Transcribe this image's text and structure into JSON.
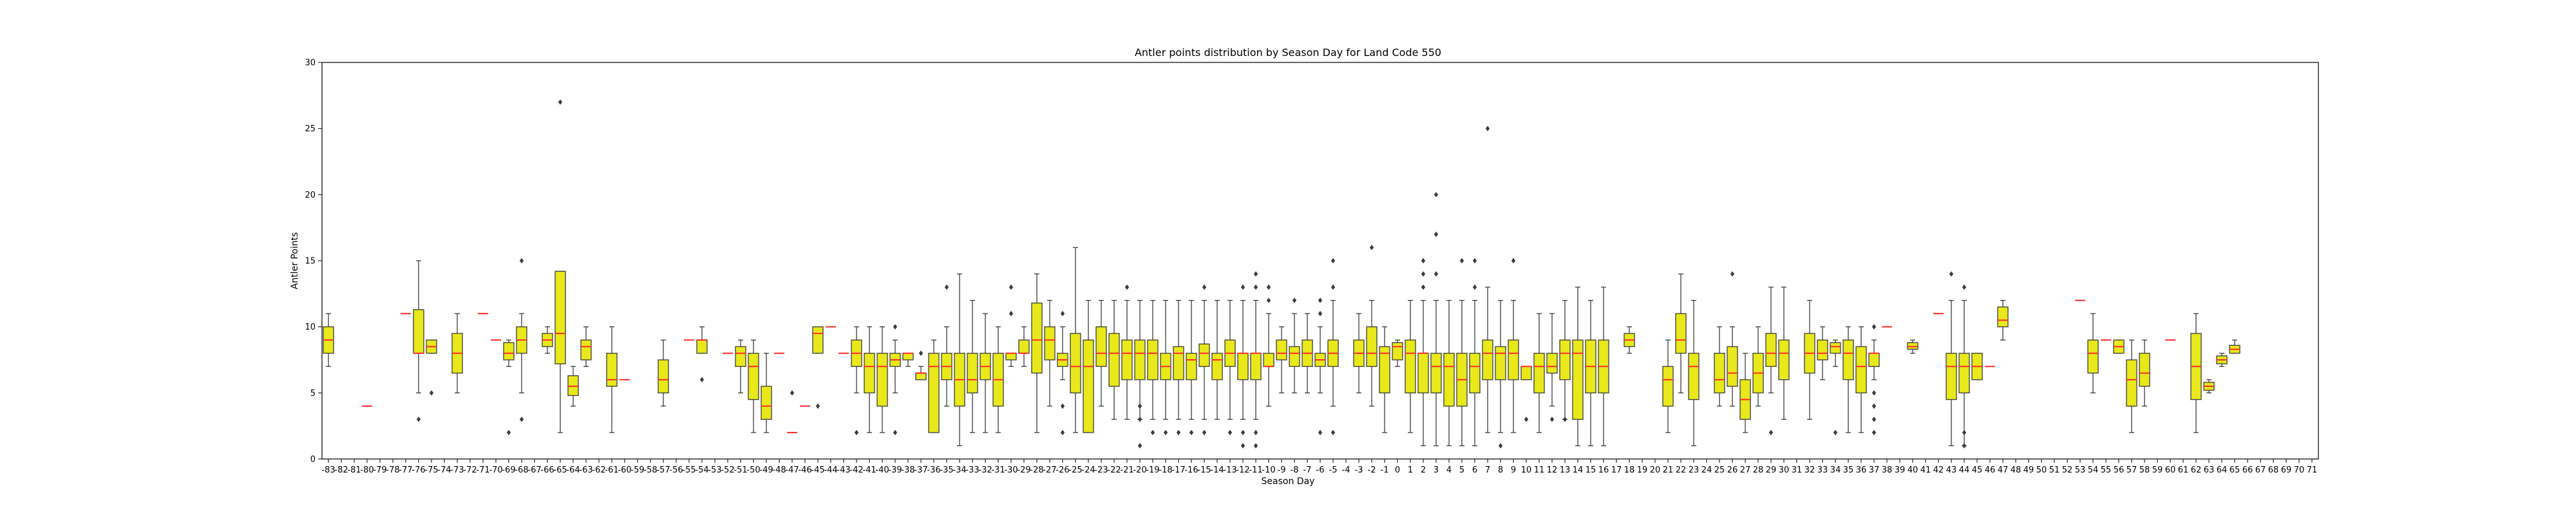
{
  "chart_data": {
    "type": "box",
    "title": "Antler points distribution by Season Day for Land Code 550",
    "xlabel": "Season Day",
    "ylabel": "Antler Points",
    "ylim": [
      0,
      30
    ],
    "yticks": [
      0,
      5,
      10,
      15,
      20,
      25,
      30
    ],
    "x_start": -83,
    "x_end": 71,
    "colors": {
      "box": "#e8e81a",
      "median": "#ff2a2a",
      "line": "#3c3c3c",
      "outlier": "#3c3c3c"
    },
    "boxes": [
      {
        "x": -83,
        "q1": 8,
        "med": 9,
        "q3": 10,
        "lo": 7,
        "hi": 11,
        "out": []
      },
      {
        "x": -80,
        "q1": 4,
        "med": 4,
        "q3": 4,
        "lo": 4,
        "hi": 4,
        "out": []
      },
      {
        "x": -77,
        "q1": 11,
        "med": 11,
        "q3": 11,
        "lo": 11,
        "hi": 11,
        "out": []
      },
      {
        "x": -76,
        "q1": 8,
        "med": 8,
        "q3": 11.3,
        "lo": 5,
        "hi": 15,
        "out": [
          3
        ]
      },
      {
        "x": -75,
        "q1": 8,
        "med": 8.5,
        "q3": 9,
        "lo": 8,
        "hi": 9,
        "out": [
          5
        ]
      },
      {
        "x": -73,
        "q1": 6.5,
        "med": 8,
        "q3": 9.5,
        "lo": 5,
        "hi": 11,
        "out": []
      },
      {
        "x": -71,
        "q1": 11,
        "med": 11,
        "q3": 11,
        "lo": 11,
        "hi": 11,
        "out": []
      },
      {
        "x": -70,
        "q1": 9,
        "med": 9,
        "q3": 9,
        "lo": 9,
        "hi": 9,
        "out": []
      },
      {
        "x": -69,
        "q1": 7.5,
        "med": 8,
        "q3": 8.8,
        "lo": 7,
        "hi": 9,
        "out": [
          2
        ]
      },
      {
        "x": -68,
        "q1": 8,
        "med": 9,
        "q3": 10,
        "lo": 5,
        "hi": 11,
        "out": [
          15,
          3
        ]
      },
      {
        "x": -66,
        "q1": 8.5,
        "med": 9,
        "q3": 9.5,
        "lo": 8,
        "hi": 10,
        "out": []
      },
      {
        "x": -65,
        "q1": 7.2,
        "med": 9.5,
        "q3": 14.2,
        "lo": 2,
        "hi": 14.2,
        "out": [
          27
        ]
      },
      {
        "x": -64,
        "q1": 4.8,
        "med": 5.5,
        "q3": 6.3,
        "lo": 4,
        "hi": 7,
        "out": []
      },
      {
        "x": -63,
        "q1": 7.5,
        "med": 8.5,
        "q3": 9,
        "lo": 7,
        "hi": 10,
        "out": []
      },
      {
        "x": -61,
        "q1": 5.5,
        "med": 6,
        "q3": 8,
        "lo": 2,
        "hi": 10,
        "out": []
      },
      {
        "x": -60,
        "q1": 6,
        "med": 6,
        "q3": 6,
        "lo": 6,
        "hi": 6,
        "out": []
      },
      {
        "x": -57,
        "q1": 5,
        "med": 6,
        "q3": 7.5,
        "lo": 4,
        "hi": 9,
        "out": []
      },
      {
        "x": -55,
        "q1": 9,
        "med": 9,
        "q3": 9,
        "lo": 9,
        "hi": 9,
        "out": []
      },
      {
        "x": -54,
        "q1": 8,
        "med": 9,
        "q3": 9,
        "lo": 8,
        "hi": 10,
        "out": [
          6
        ]
      },
      {
        "x": -52,
        "q1": 8,
        "med": 8,
        "q3": 8,
        "lo": 8,
        "hi": 8,
        "out": []
      },
      {
        "x": -51,
        "q1": 7,
        "med": 8,
        "q3": 8.5,
        "lo": 5,
        "hi": 9,
        "out": []
      },
      {
        "x": -50,
        "q1": 4.5,
        "med": 7,
        "q3": 8,
        "lo": 2,
        "hi": 9,
        "out": []
      },
      {
        "x": -49,
        "q1": 3,
        "med": 4,
        "q3": 5.5,
        "lo": 2,
        "hi": 8,
        "out": []
      },
      {
        "x": -48,
        "q1": 8,
        "med": 8,
        "q3": 8,
        "lo": 8,
        "hi": 8,
        "out": []
      },
      {
        "x": -47,
        "q1": 2,
        "med": 2,
        "q3": 2,
        "lo": 2,
        "hi": 2,
        "out": [
          5
        ]
      },
      {
        "x": -46,
        "q1": 4,
        "med": 4,
        "q3": 4,
        "lo": 4,
        "hi": 4,
        "out": []
      },
      {
        "x": -45,
        "q1": 8,
        "med": 9.5,
        "q3": 10,
        "lo": 8,
        "hi": 10,
        "out": [
          4
        ]
      },
      {
        "x": -44,
        "q1": 10,
        "med": 10,
        "q3": 10,
        "lo": 10,
        "hi": 10,
        "out": []
      },
      {
        "x": -43,
        "q1": 8,
        "med": 8,
        "q3": 8,
        "lo": 8,
        "hi": 8,
        "out": []
      },
      {
        "x": -42,
        "q1": 7,
        "med": 8,
        "q3": 9,
        "lo": 5,
        "hi": 10,
        "out": [
          2
        ]
      },
      {
        "x": -41,
        "q1": 5,
        "med": 7,
        "q3": 8,
        "lo": 2,
        "hi": 10,
        "out": []
      },
      {
        "x": -40,
        "q1": 4,
        "med": 7,
        "q3": 8,
        "lo": 2,
        "hi": 10,
        "out": []
      },
      {
        "x": -39,
        "q1": 7,
        "med": 7.5,
        "q3": 8,
        "lo": 5,
        "hi": 9,
        "out": [
          2,
          10
        ]
      },
      {
        "x": -38,
        "q1": 7.5,
        "med": 8,
        "q3": 8,
        "lo": 7,
        "hi": 8,
        "out": []
      },
      {
        "x": -37,
        "q1": 6,
        "med": 6.5,
        "q3": 6.5,
        "lo": 6,
        "hi": 7,
        "out": [
          8
        ]
      },
      {
        "x": -36,
        "q1": 2,
        "med": 7,
        "q3": 8,
        "lo": 2,
        "hi": 9,
        "out": []
      },
      {
        "x": -35,
        "q1": 6,
        "med": 7,
        "q3": 8,
        "lo": 4,
        "hi": 10,
        "out": [
          13
        ]
      },
      {
        "x": -34,
        "q1": 4,
        "med": 6,
        "q3": 8,
        "lo": 1,
        "hi": 14,
        "out": []
      },
      {
        "x": -33,
        "q1": 5,
        "med": 6,
        "q3": 8,
        "lo": 2,
        "hi": 12,
        "out": []
      },
      {
        "x": -32,
        "q1": 6,
        "med": 7,
        "q3": 8,
        "lo": 2,
        "hi": 11,
        "out": []
      },
      {
        "x": -31,
        "q1": 4,
        "med": 6,
        "q3": 8,
        "lo": 2,
        "hi": 10,
        "out": []
      },
      {
        "x": -30,
        "q1": 7.5,
        "med": 8,
        "q3": 8,
        "lo": 7,
        "hi": 8,
        "out": [
          13,
          11
        ]
      },
      {
        "x": -29,
        "q1": 8,
        "med": 8,
        "q3": 9,
        "lo": 7,
        "hi": 10,
        "out": []
      },
      {
        "x": -28,
        "q1": 6.5,
        "med": 9,
        "q3": 11.8,
        "lo": 2,
        "hi": 14,
        "out": []
      },
      {
        "x": -27,
        "q1": 7.5,
        "med": 9,
        "q3": 10,
        "lo": 4,
        "hi": 12,
        "out": []
      },
      {
        "x": -26,
        "q1": 7,
        "med": 7.5,
        "q3": 8,
        "lo": 6,
        "hi": 10,
        "out": [
          11,
          2,
          4
        ]
      },
      {
        "x": -25,
        "q1": 5,
        "med": 7,
        "q3": 9.5,
        "lo": 2,
        "hi": 16,
        "out": []
      },
      {
        "x": -24,
        "q1": 2,
        "med": 7,
        "q3": 9,
        "lo": 2,
        "hi": 12,
        "out": []
      },
      {
        "x": -23,
        "q1": 7,
        "med": 8,
        "q3": 10,
        "lo": 4,
        "hi": 12,
        "out": []
      },
      {
        "x": -22,
        "q1": 5.5,
        "med": 8,
        "q3": 9.5,
        "lo": 3,
        "hi": 12,
        "out": []
      },
      {
        "x": -21,
        "q1": 6,
        "med": 8,
        "q3": 9,
        "lo": 3,
        "hi": 12,
        "out": [
          13
        ]
      },
      {
        "x": -20,
        "q1": 6,
        "med": 8,
        "q3": 9,
        "lo": 3,
        "hi": 12,
        "out": [
          4,
          3,
          1
        ]
      },
      {
        "x": -19,
        "q1": 6,
        "med": 8,
        "q3": 9,
        "lo": 3,
        "hi": 12,
        "out": [
          2
        ]
      },
      {
        "x": -18,
        "q1": 6,
        "med": 7,
        "q3": 8,
        "lo": 3,
        "hi": 12,
        "out": [
          2
        ]
      },
      {
        "x": -17,
        "q1": 6,
        "med": 8,
        "q3": 8.5,
        "lo": 3,
        "hi": 12,
        "out": [
          2
        ]
      },
      {
        "x": -16,
        "q1": 6,
        "med": 7.5,
        "q3": 8,
        "lo": 3,
        "hi": 12,
        "out": [
          2
        ]
      },
      {
        "x": -15,
        "q1": 7,
        "med": 8,
        "q3": 8.7,
        "lo": 3,
        "hi": 12,
        "out": [
          13,
          2
        ]
      },
      {
        "x": -14,
        "q1": 6,
        "med": 7.5,
        "q3": 8,
        "lo": 3,
        "hi": 12,
        "out": []
      },
      {
        "x": -13,
        "q1": 7,
        "med": 8,
        "q3": 9,
        "lo": 3,
        "hi": 12,
        "out": [
          2
        ]
      },
      {
        "x": -12,
        "q1": 6,
        "med": 8,
        "q3": 8,
        "lo": 3,
        "hi": 12,
        "out": [
          13,
          2,
          1
        ]
      },
      {
        "x": -11,
        "q1": 6,
        "med": 8,
        "q3": 8,
        "lo": 3,
        "hi": 12,
        "out": [
          14,
          13,
          2,
          1
        ]
      },
      {
        "x": -10,
        "q1": 7,
        "med": 7,
        "q3": 8,
        "lo": 4,
        "hi": 11,
        "out": [
          13,
          12
        ]
      },
      {
        "x": -9,
        "q1": 7.5,
        "med": 8,
        "q3": 9,
        "lo": 5,
        "hi": 10,
        "out": []
      },
      {
        "x": -8,
        "q1": 7,
        "med": 8,
        "q3": 8.5,
        "lo": 5,
        "hi": 11,
        "out": [
          12
        ]
      },
      {
        "x": -7,
        "q1": 7,
        "med": 8,
        "q3": 9,
        "lo": 5,
        "hi": 11,
        "out": []
      },
      {
        "x": -6,
        "q1": 7,
        "med": 7.5,
        "q3": 8,
        "lo": 5,
        "hi": 10,
        "out": [
          12,
          11,
          2
        ]
      },
      {
        "x": -5,
        "q1": 7,
        "med": 8,
        "q3": 9,
        "lo": 4,
        "hi": 12,
        "out": [
          15,
          13,
          2
        ]
      },
      {
        "x": -3,
        "q1": 7,
        "med": 8,
        "q3": 9,
        "lo": 5,
        "hi": 11,
        "out": []
      },
      {
        "x": -2,
        "q1": 7,
        "med": 8,
        "q3": 10,
        "lo": 4,
        "hi": 12,
        "out": [
          16
        ]
      },
      {
        "x": -1,
        "q1": 5,
        "med": 8,
        "q3": 8.5,
        "lo": 2,
        "hi": 10,
        "out": []
      },
      {
        "x": 0,
        "q1": 7.5,
        "med": 8.5,
        "q3": 8.8,
        "lo": 7,
        "hi": 9,
        "out": []
      },
      {
        "x": 1,
        "q1": 5,
        "med": 8,
        "q3": 9,
        "lo": 2,
        "hi": 12,
        "out": []
      },
      {
        "x": 2,
        "q1": 5,
        "med": 8,
        "q3": 8,
        "lo": 1,
        "hi": 12,
        "out": [
          15,
          14,
          13
        ]
      },
      {
        "x": 3,
        "q1": 5,
        "med": 7,
        "q3": 8,
        "lo": 1,
        "hi": 12,
        "out": [
          20,
          17,
          14
        ]
      },
      {
        "x": 4,
        "q1": 4,
        "med": 7,
        "q3": 8,
        "lo": 1,
        "hi": 12,
        "out": []
      },
      {
        "x": 5,
        "q1": 4,
        "med": 6,
        "q3": 8,
        "lo": 1,
        "hi": 12,
        "out": [
          15
        ]
      },
      {
        "x": 6,
        "q1": 5,
        "med": 7,
        "q3": 8,
        "lo": 1,
        "hi": 12,
        "out": [
          15,
          13
        ]
      },
      {
        "x": 7,
        "q1": 6,
        "med": 8,
        "q3": 9,
        "lo": 2,
        "hi": 13,
        "out": [
          25
        ]
      },
      {
        "x": 8,
        "q1": 6,
        "med": 8,
        "q3": 8.5,
        "lo": 2,
        "hi": 12,
        "out": [
          1
        ]
      },
      {
        "x": 9,
        "q1": 6,
        "med": 8,
        "q3": 9,
        "lo": 2,
        "hi": 12,
        "out": [
          15
        ]
      },
      {
        "x": 10,
        "q1": 6,
        "med": 7,
        "q3": 7,
        "lo": 6,
        "hi": 7,
        "out": [
          3
        ]
      },
      {
        "x": 11,
        "q1": 5,
        "med": 7,
        "q3": 8,
        "lo": 2,
        "hi": 11,
        "out": []
      },
      {
        "x": 12,
        "q1": 6.5,
        "med": 7,
        "q3": 8,
        "lo": 4,
        "hi": 11,
        "out": [
          3
        ]
      },
      {
        "x": 13,
        "q1": 6,
        "med": 8,
        "q3": 9,
        "lo": 3,
        "hi": 12,
        "out": [
          3
        ]
      },
      {
        "x": 14,
        "q1": 3,
        "med": 8,
        "q3": 9,
        "lo": 1,
        "hi": 13,
        "out": []
      },
      {
        "x": 15,
        "q1": 5,
        "med": 7,
        "q3": 9,
        "lo": 1,
        "hi": 12,
        "out": []
      },
      {
        "x": 16,
        "q1": 5,
        "med": 7,
        "q3": 9,
        "lo": 1,
        "hi": 13,
        "out": []
      },
      {
        "x": 18,
        "q1": 8.5,
        "med": 9,
        "q3": 9.5,
        "lo": 8,
        "hi": 10,
        "out": []
      },
      {
        "x": 21,
        "q1": 4,
        "med": 6,
        "q3": 7,
        "lo": 2,
        "hi": 9,
        "out": []
      },
      {
        "x": 22,
        "q1": 8,
        "med": 9,
        "q3": 11,
        "lo": 5,
        "hi": 14,
        "out": []
      },
      {
        "x": 23,
        "q1": 4.5,
        "med": 7,
        "q3": 8,
        "lo": 1,
        "hi": 12,
        "out": []
      },
      {
        "x": 25,
        "q1": 5,
        "med": 6,
        "q3": 8,
        "lo": 4,
        "hi": 10,
        "out": []
      },
      {
        "x": 26,
        "q1": 5.5,
        "med": 6.5,
        "q3": 8.5,
        "lo": 4,
        "hi": 10,
        "out": [
          14
        ]
      },
      {
        "x": 27,
        "q1": 3,
        "med": 4.5,
        "q3": 6,
        "lo": 2,
        "hi": 8,
        "out": []
      },
      {
        "x": 28,
        "q1": 5,
        "med": 6.5,
        "q3": 8,
        "lo": 4,
        "hi": 10,
        "out": []
      },
      {
        "x": 29,
        "q1": 7,
        "med": 8,
        "q3": 9.5,
        "lo": 5,
        "hi": 13,
        "out": [
          2
        ]
      },
      {
        "x": 30,
        "q1": 6,
        "med": 8,
        "q3": 9,
        "lo": 3,
        "hi": 13,
        "out": []
      },
      {
        "x": 32,
        "q1": 6.5,
        "med": 8,
        "q3": 9.5,
        "lo": 3,
        "hi": 12,
        "out": []
      },
      {
        "x": 33,
        "q1": 7.5,
        "med": 8,
        "q3": 9,
        "lo": 6,
        "hi": 10,
        "out": []
      },
      {
        "x": 34,
        "q1": 8,
        "med": 8.5,
        "q3": 8.8,
        "lo": 7,
        "hi": 9,
        "out": [
          2
        ]
      },
      {
        "x": 35,
        "q1": 6,
        "med": 8,
        "q3": 9,
        "lo": 2,
        "hi": 10,
        "out": []
      },
      {
        "x": 36,
        "q1": 5,
        "med": 7,
        "q3": 8.5,
        "lo": 2,
        "hi": 10,
        "out": []
      },
      {
        "x": 37,
        "q1": 7,
        "med": 8,
        "q3": 8,
        "lo": 6,
        "hi": 9,
        "out": [
          10,
          5,
          4,
          3,
          2
        ]
      },
      {
        "x": 38,
        "q1": 10,
        "med": 10,
        "q3": 10,
        "lo": 10,
        "hi": 10,
        "out": []
      },
      {
        "x": 40,
        "q1": 8.3,
        "med": 8.5,
        "q3": 8.8,
        "lo": 8,
        "hi": 9,
        "out": []
      },
      {
        "x": 42,
        "q1": 11,
        "med": 11,
        "q3": 11,
        "lo": 11,
        "hi": 11,
        "out": []
      },
      {
        "x": 43,
        "q1": 4.5,
        "med": 7,
        "q3": 8,
        "lo": 1,
        "hi": 12,
        "out": [
          14
        ]
      },
      {
        "x": 44,
        "q1": 5,
        "med": 7,
        "q3": 8,
        "lo": 1,
        "hi": 12,
        "out": [
          13,
          2,
          1
        ]
      },
      {
        "x": 45,
        "q1": 6,
        "med": 7,
        "q3": 8,
        "lo": 6,
        "hi": 8,
        "out": []
      },
      {
        "x": 46,
        "q1": 7,
        "med": 7,
        "q3": 7,
        "lo": 7,
        "hi": 7,
        "out": []
      },
      {
        "x": 47,
        "q1": 10,
        "med": 10.5,
        "q3": 11.5,
        "lo": 9,
        "hi": 12,
        "out": []
      },
      {
        "x": 53,
        "q1": 12,
        "med": 12,
        "q3": 12,
        "lo": 12,
        "hi": 12,
        "out": []
      },
      {
        "x": 54,
        "q1": 6.5,
        "med": 8,
        "q3": 9,
        "lo": 5,
        "hi": 11,
        "out": []
      },
      {
        "x": 55,
        "q1": 9,
        "med": 9,
        "q3": 9,
        "lo": 9,
        "hi": 9,
        "out": []
      },
      {
        "x": 56,
        "q1": 8,
        "med": 8.5,
        "q3": 9,
        "lo": 8,
        "hi": 9,
        "out": []
      },
      {
        "x": 57,
        "q1": 4,
        "med": 6,
        "q3": 7.5,
        "lo": 2,
        "hi": 9,
        "out": []
      },
      {
        "x": 58,
        "q1": 5.5,
        "med": 6.5,
        "q3": 8,
        "lo": 4,
        "hi": 9,
        "out": []
      },
      {
        "x": 60,
        "q1": 9,
        "med": 9,
        "q3": 9,
        "lo": 9,
        "hi": 9,
        "out": []
      },
      {
        "x": 62,
        "q1": 4.5,
        "med": 7,
        "q3": 9.5,
        "lo": 2,
        "hi": 11,
        "out": []
      },
      {
        "x": 63,
        "q1": 5.2,
        "med": 5.5,
        "q3": 5.8,
        "lo": 5,
        "hi": 6,
        "out": []
      },
      {
        "x": 64,
        "q1": 7.2,
        "med": 7.5,
        "q3": 7.8,
        "lo": 7,
        "hi": 8,
        "out": []
      },
      {
        "x": 65,
        "q1": 8,
        "med": 8.3,
        "q3": 8.6,
        "lo": 8,
        "hi": 9,
        "out": []
      }
    ]
  }
}
